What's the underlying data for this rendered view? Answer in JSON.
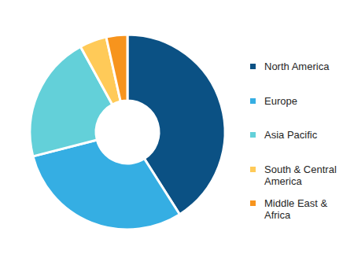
{
  "chart_data": {
    "type": "pie",
    "categories": [
      "North America",
      "Europe",
      "Asia Pacific",
      "South & Central America",
      "Middle East & Africa"
    ],
    "values": [
      41,
      30,
      21,
      4.5,
      3.5
    ],
    "colors": [
      "#0b5184",
      "#35aee3",
      "#63d0d9",
      "#ffca58",
      "#f7941d"
    ],
    "legend": "right"
  }
}
